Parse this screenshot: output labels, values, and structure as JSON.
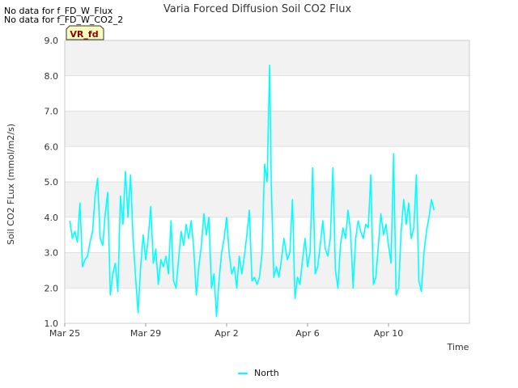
{
  "no_data_messages": [
    "No data for f_FD_W_Flux",
    "No data for f_FD_W_CO2_2"
  ],
  "badge": "VR_fd",
  "colors": {
    "series": "#00ffff",
    "band": "#f2f2f2",
    "grid": "#d9d9d9",
    "badge_fill": "#ffffc0"
  },
  "chart_data": {
    "type": "line",
    "title": "Varia Forced Diffusion Soil CO2 Flux",
    "xlabel": "Time",
    "ylabel": "Soil CO2 FLux (mmol/m2/s)",
    "ylim": [
      1.0,
      9.0
    ],
    "yticks": [
      "1.0",
      "2.0",
      "3.0",
      "4.0",
      "5.0",
      "6.0",
      "7.0",
      "8.0",
      "9.0"
    ],
    "xlim": [
      "2025-03-25",
      "2025-04-14"
    ],
    "xticks": [
      {
        "date": "2025-03-25",
        "label": "Mar 25"
      },
      {
        "date": "2025-03-29",
        "label": "Mar 29"
      },
      {
        "date": "2025-04-02",
        "label": "Apr 2"
      },
      {
        "date": "2025-04-06",
        "label": "Apr 6"
      },
      {
        "date": "2025-04-10",
        "label": "Apr 10"
      }
    ],
    "grid": true,
    "legend": "bottom-center",
    "series": [
      {
        "name": "North",
        "color": "#00ffff",
        "points": [
          [
            "2025-03-25 06:00",
            3.9
          ],
          [
            "2025-03-25 09:00",
            3.4
          ],
          [
            "2025-03-25 12:00",
            3.6
          ],
          [
            "2025-03-25 15:00",
            3.3
          ],
          [
            "2025-03-25 18:00",
            4.4
          ],
          [
            "2025-03-25 21:00",
            2.6
          ],
          [
            "2025-03-26 00:00",
            2.8
          ],
          [
            "2025-03-26 03:00",
            2.9
          ],
          [
            "2025-03-26 06:00",
            3.3
          ],
          [
            "2025-03-26 09:00",
            3.6
          ],
          [
            "2025-03-26 12:00",
            4.6
          ],
          [
            "2025-03-26 15:00",
            5.1
          ],
          [
            "2025-03-26 18:00",
            3.4
          ],
          [
            "2025-03-26 21:00",
            3.2
          ],
          [
            "2025-03-27 00:00",
            4.1
          ],
          [
            "2025-03-27 03:00",
            4.7
          ],
          [
            "2025-03-27 06:00",
            1.8
          ],
          [
            "2025-03-27 09:00",
            2.4
          ],
          [
            "2025-03-27 12:00",
            2.7
          ],
          [
            "2025-03-27 15:00",
            1.9
          ],
          [
            "2025-03-27 18:00",
            4.6
          ],
          [
            "2025-03-27 21:00",
            3.8
          ],
          [
            "2025-03-28 00:00",
            5.3
          ],
          [
            "2025-03-28 03:00",
            4.0
          ],
          [
            "2025-03-28 06:00",
            5.2
          ],
          [
            "2025-03-28 09:00",
            3.4
          ],
          [
            "2025-03-28 12:00",
            2.3
          ],
          [
            "2025-03-28 15:00",
            1.3
          ],
          [
            "2025-03-28 18:00",
            2.6
          ],
          [
            "2025-03-28 21:00",
            3.5
          ],
          [
            "2025-03-29 00:00",
            2.8
          ],
          [
            "2025-03-29 03:00",
            3.4
          ],
          [
            "2025-03-29 06:00",
            4.3
          ],
          [
            "2025-03-29 09:00",
            2.7
          ],
          [
            "2025-03-29 12:00",
            3.1
          ],
          [
            "2025-03-29 15:00",
            2.1
          ],
          [
            "2025-03-29 18:00",
            2.8
          ],
          [
            "2025-03-29 21:00",
            2.6
          ],
          [
            "2025-03-30 00:00",
            2.9
          ],
          [
            "2025-03-30 03:00",
            2.4
          ],
          [
            "2025-03-30 06:00",
            3.9
          ],
          [
            "2025-03-30 09:00",
            2.2
          ],
          [
            "2025-03-30 12:00",
            2.0
          ],
          [
            "2025-03-30 15:00",
            2.8
          ],
          [
            "2025-03-30 18:00",
            3.6
          ],
          [
            "2025-03-30 21:00",
            3.2
          ],
          [
            "2025-03-31 00:00",
            3.8
          ],
          [
            "2025-03-31 03:00",
            3.4
          ],
          [
            "2025-03-31 06:00",
            3.9
          ],
          [
            "2025-03-31 09:00",
            3.1
          ],
          [
            "2025-03-31 12:00",
            1.8
          ],
          [
            "2025-03-31 15:00",
            2.6
          ],
          [
            "2025-03-31 18:00",
            3.2
          ],
          [
            "2025-03-31 21:00",
            4.1
          ],
          [
            "2025-04-01 00:00",
            3.5
          ],
          [
            "2025-04-01 03:00",
            4.0
          ],
          [
            "2025-04-01 06:00",
            2.0
          ],
          [
            "2025-04-01 09:00",
            2.4
          ],
          [
            "2025-04-01 12:00",
            1.2
          ],
          [
            "2025-04-01 15:00",
            2.2
          ],
          [
            "2025-04-01 18:00",
            3.0
          ],
          [
            "2025-04-01 21:00",
            3.4
          ],
          [
            "2025-04-02 00:00",
            4.0
          ],
          [
            "2025-04-02 03:00",
            3.0
          ],
          [
            "2025-04-02 06:00",
            2.4
          ],
          [
            "2025-04-02 09:00",
            2.6
          ],
          [
            "2025-04-02 12:00",
            2.0
          ],
          [
            "2025-04-02 15:00",
            2.9
          ],
          [
            "2025-04-02 18:00",
            2.4
          ],
          [
            "2025-04-02 21:00",
            2.9
          ],
          [
            "2025-04-03 00:00",
            3.5
          ],
          [
            "2025-04-03 03:00",
            4.2
          ],
          [
            "2025-04-03 06:00",
            2.2
          ],
          [
            "2025-04-03 09:00",
            2.3
          ],
          [
            "2025-04-03 12:00",
            2.1
          ],
          [
            "2025-04-03 15:00",
            2.3
          ],
          [
            "2025-04-03 18:00",
            3.0
          ],
          [
            "2025-04-03 21:00",
            5.5
          ],
          [
            "2025-04-04 00:00",
            5.0
          ],
          [
            "2025-04-04 03:00",
            8.3
          ],
          [
            "2025-04-04 05:00",
            4.9
          ],
          [
            "2025-04-04 08:00",
            2.3
          ],
          [
            "2025-04-04 11:00",
            2.6
          ],
          [
            "2025-04-04 14:00",
            2.3
          ],
          [
            "2025-04-04 17:00",
            2.8
          ],
          [
            "2025-04-04 20:00",
            3.4
          ],
          [
            "2025-04-05 00:00",
            2.8
          ],
          [
            "2025-04-05 03:00",
            3.0
          ],
          [
            "2025-04-05 06:00",
            4.5
          ],
          [
            "2025-04-05 09:00",
            1.7
          ],
          [
            "2025-04-05 12:00",
            2.3
          ],
          [
            "2025-04-05 15:00",
            2.1
          ],
          [
            "2025-04-05 18:00",
            2.8
          ],
          [
            "2025-04-05 21:00",
            3.4
          ],
          [
            "2025-04-06 00:00",
            2.6
          ],
          [
            "2025-04-06 03:00",
            3.0
          ],
          [
            "2025-04-06 06:00",
            5.4
          ],
          [
            "2025-04-06 09:00",
            2.4
          ],
          [
            "2025-04-06 12:00",
            2.6
          ],
          [
            "2025-04-06 15:00",
            3.2
          ],
          [
            "2025-04-06 18:00",
            3.9
          ],
          [
            "2025-04-06 21:00",
            3.1
          ],
          [
            "2025-04-07 00:00",
            2.9
          ],
          [
            "2025-04-07 03:00",
            3.4
          ],
          [
            "2025-04-07 06:00",
            5.4
          ],
          [
            "2025-04-07 09:00",
            2.5
          ],
          [
            "2025-04-07 12:00",
            2.0
          ],
          [
            "2025-04-07 15:00",
            3.2
          ],
          [
            "2025-04-07 18:00",
            3.7
          ],
          [
            "2025-04-07 21:00",
            3.4
          ],
          [
            "2025-04-08 00:00",
            4.2
          ],
          [
            "2025-04-08 03:00",
            3.6
          ],
          [
            "2025-04-08 06:00",
            2.0
          ],
          [
            "2025-04-08 09:00",
            3.4
          ],
          [
            "2025-04-08 12:00",
            3.9
          ],
          [
            "2025-04-08 15:00",
            3.6
          ],
          [
            "2025-04-08 18:00",
            3.4
          ],
          [
            "2025-04-08 21:00",
            3.8
          ],
          [
            "2025-04-09 00:00",
            3.7
          ],
          [
            "2025-04-09 03:00",
            5.2
          ],
          [
            "2025-04-09 06:00",
            2.1
          ],
          [
            "2025-04-09 09:00",
            2.3
          ],
          [
            "2025-04-09 12:00",
            3.2
          ],
          [
            "2025-04-09 15:00",
            4.1
          ],
          [
            "2025-04-09 18:00",
            3.5
          ],
          [
            "2025-04-09 21:00",
            3.8
          ],
          [
            "2025-04-10 00:00",
            3.2
          ],
          [
            "2025-04-10 03:00",
            2.7
          ],
          [
            "2025-04-10 06:00",
            5.8
          ],
          [
            "2025-04-10 09:00",
            1.8
          ],
          [
            "2025-04-10 12:00",
            2.0
          ],
          [
            "2025-04-10 15:00",
            3.6
          ],
          [
            "2025-04-10 18:00",
            4.5
          ],
          [
            "2025-04-10 21:00",
            3.8
          ],
          [
            "2025-04-11 00:00",
            4.4
          ],
          [
            "2025-04-11 03:00",
            3.4
          ],
          [
            "2025-04-11 06:00",
            3.7
          ],
          [
            "2025-04-11 09:00",
            5.2
          ],
          [
            "2025-04-11 12:00",
            2.2
          ],
          [
            "2025-04-11 15:00",
            1.9
          ],
          [
            "2025-04-11 18:00",
            3.0
          ],
          [
            "2025-04-11 21:00",
            3.6
          ],
          [
            "2025-04-12 00:00",
            4.0
          ],
          [
            "2025-04-12 03:00",
            4.5
          ],
          [
            "2025-04-12 06:00",
            4.2
          ]
        ]
      }
    ]
  }
}
